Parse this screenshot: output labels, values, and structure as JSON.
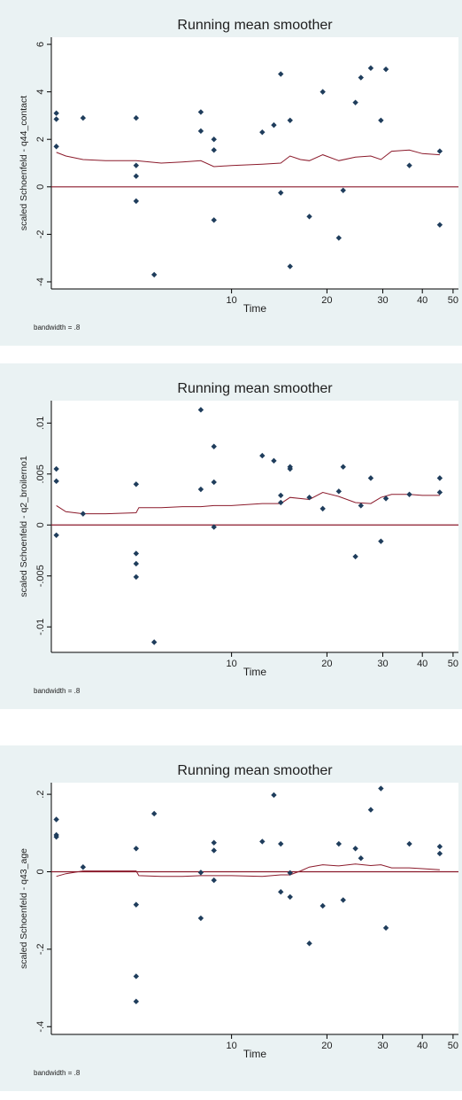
{
  "chart_data": [
    {
      "type": "scatter",
      "title": "Running mean smoother",
      "xlabel": "Time",
      "ylabel": "scaled Schoenfeld - q44_contact",
      "note": "bandwidth = .8",
      "x_scale": "log",
      "xlim": [
        2.7,
        52
      ],
      "ylim": [
        -4.3,
        6.3
      ],
      "x_ticks": [
        10,
        20,
        30,
        40,
        50
      ],
      "y_ticks": [
        -4,
        -2,
        0,
        2,
        4,
        6
      ],
      "y_tick_labels": [
        "-4",
        "-2",
        "0",
        "2",
        "4",
        "6"
      ],
      "reference_line": 0,
      "grid": false,
      "legend": "none",
      "points": {
        "x": [
          2.8,
          2.8,
          2.8,
          3.4,
          5.0,
          5.0,
          5.0,
          5.0,
          5.7,
          8.0,
          8.0,
          8.8,
          8.8,
          8.8,
          12.5,
          13.6,
          14.3,
          14.3,
          15.3,
          15.3,
          17.6,
          19.4,
          21.8,
          22.5,
          24.6,
          25.6,
          27.5,
          29.6,
          30.7,
          36.4,
          45.4,
          45.4
        ],
        "y": [
          3.1,
          2.85,
          1.7,
          2.9,
          2.9,
          0.9,
          0.45,
          -0.6,
          -3.7,
          3.15,
          2.35,
          2.0,
          1.55,
          -1.4,
          2.3,
          2.6,
          4.75,
          -0.25,
          2.8,
          -3.35,
          -1.25,
          4.0,
          -2.15,
          -0.15,
          3.55,
          4.6,
          5.0,
          2.8,
          4.95,
          0.9,
          1.5,
          -1.6
        ]
      },
      "smoother": {
        "x": [
          2.8,
          3.0,
          3.4,
          4.0,
          5.0,
          6.0,
          7.0,
          8.0,
          8.8,
          10.0,
          12.5,
          14.3,
          15.3,
          16.5,
          17.6,
          19.4,
          21.8,
          24.6,
          27.5,
          29.6,
          32.0,
          36.4,
          40.0,
          45.4
        ],
        "y": [
          1.45,
          1.3,
          1.15,
          1.1,
          1.1,
          1.0,
          1.05,
          1.1,
          0.85,
          0.9,
          0.95,
          1.0,
          1.3,
          1.15,
          1.1,
          1.35,
          1.1,
          1.25,
          1.3,
          1.15,
          1.5,
          1.55,
          1.4,
          1.35
        ]
      }
    },
    {
      "type": "scatter",
      "title": "Running mean smoother",
      "xlabel": "Time",
      "ylabel": "scaled Schoenfeld - q2_broilerno1",
      "note": "bandwidth = .8",
      "x_scale": "log",
      "xlim": [
        2.7,
        52
      ],
      "ylim": [
        -0.0125,
        0.0122
      ],
      "x_ticks": [
        10,
        20,
        30,
        40,
        50
      ],
      "y_ticks": [
        -0.01,
        -0.005,
        0,
        0.005,
        0.01
      ],
      "y_tick_labels": [
        "-.01",
        "-.005",
        "0",
        ".005",
        ".01"
      ],
      "reference_line": 0,
      "grid": false,
      "legend": "none",
      "points": {
        "x": [
          2.8,
          2.8,
          2.8,
          3.4,
          5.0,
          5.0,
          5.0,
          5.0,
          5.7,
          8.0,
          8.0,
          8.8,
          8.8,
          8.8,
          12.5,
          13.6,
          14.3,
          14.3,
          15.3,
          15.3,
          17.6,
          19.4,
          21.8,
          22.5,
          24.6,
          25.6,
          27.5,
          29.6,
          30.7,
          36.4,
          45.4,
          45.4
        ],
        "y": [
          0.0055,
          0.0043,
          -0.001,
          0.0011,
          0.004,
          -0.0028,
          -0.0038,
          -0.0051,
          -0.0115,
          0.0113,
          0.0035,
          0.0077,
          0.0042,
          -0.0002,
          0.0068,
          0.0063,
          0.0029,
          0.0022,
          0.0057,
          0.0055,
          0.0027,
          0.0016,
          0.0033,
          0.0057,
          -0.0031,
          0.0019,
          0.0046,
          -0.0016,
          0.0026,
          0.003,
          0.0046,
          0.0032
        ]
      },
      "smoother": {
        "x": [
          2.8,
          3.0,
          3.4,
          4.0,
          5.0,
          5.1,
          6.0,
          7.0,
          8.0,
          8.8,
          10.0,
          12.5,
          14.3,
          15.3,
          17.6,
          19.4,
          21.8,
          24.6,
          27.5,
          29.6,
          32.0,
          36.4,
          40.0,
          45.4
        ],
        "y": [
          0.0019,
          0.0013,
          0.0011,
          0.0011,
          0.0012,
          0.0017,
          0.0017,
          0.0018,
          0.0018,
          0.0019,
          0.0019,
          0.0021,
          0.0021,
          0.0027,
          0.0025,
          0.0032,
          0.0028,
          0.0022,
          0.0021,
          0.0027,
          0.003,
          0.003,
          0.0029,
          0.0029
        ]
      }
    },
    {
      "type": "scatter",
      "title": "Running mean smoother",
      "xlabel": "Time",
      "ylabel": "scaled Schoenfeld - q43_age",
      "note": "bandwidth = .8",
      "x_scale": "log",
      "xlim": [
        2.7,
        52
      ],
      "ylim": [
        -0.42,
        0.23
      ],
      "x_ticks": [
        10,
        20,
        30,
        40,
        50
      ],
      "y_ticks": [
        -0.4,
        -0.2,
        0,
        0.2
      ],
      "y_tick_labels": [
        "-.4",
        "-.2",
        "0",
        ".2"
      ],
      "reference_line": 0,
      "grid": false,
      "legend": "none",
      "points": {
        "x": [
          2.8,
          2.8,
          2.8,
          3.4,
          5.0,
          5.0,
          5.0,
          5.0,
          5.7,
          8.0,
          8.0,
          8.8,
          8.8,
          8.8,
          12.5,
          13.6,
          14.3,
          14.3,
          15.3,
          15.3,
          17.6,
          19.4,
          21.8,
          22.5,
          24.6,
          25.6,
          27.5,
          29.6,
          30.7,
          36.4,
          45.4,
          45.4
        ],
        "y": [
          0.135,
          0.095,
          0.09,
          0.012,
          0.06,
          -0.085,
          -0.27,
          -0.335,
          0.15,
          -0.002,
          -0.12,
          0.075,
          0.055,
          -0.022,
          0.078,
          0.198,
          -0.052,
          0.072,
          -0.003,
          -0.065,
          -0.185,
          -0.088,
          0.072,
          -0.073,
          0.06,
          0.035,
          0.16,
          0.215,
          -0.145,
          0.072,
          0.047,
          0.065
        ]
      },
      "smoother": {
        "x": [
          2.8,
          3.0,
          3.4,
          4.0,
          5.0,
          5.1,
          6.0,
          7.0,
          8.0,
          8.8,
          10.0,
          12.5,
          14.3,
          15.3,
          16.5,
          17.6,
          19.4,
          21.8,
          24.6,
          27.5,
          29.6,
          32.0,
          36.4,
          40.0,
          45.4
        ],
        "y": [
          -0.012,
          -0.005,
          0.002,
          0.002,
          0.002,
          -0.01,
          -0.012,
          -0.012,
          -0.01,
          -0.01,
          -0.01,
          -0.012,
          -0.008,
          -0.008,
          0.002,
          0.012,
          0.018,
          0.015,
          0.02,
          0.016,
          0.018,
          0.01,
          0.01,
          0.008,
          0.005
        ]
      }
    }
  ]
}
